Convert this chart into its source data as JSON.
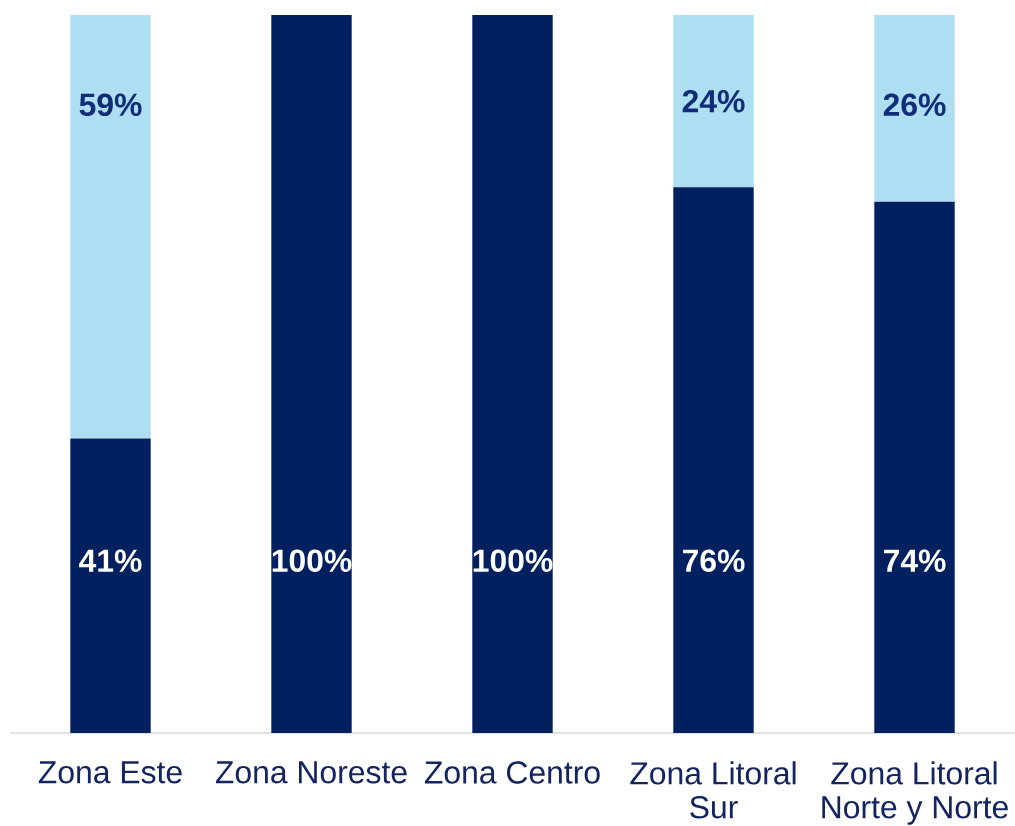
{
  "chart_data": {
    "type": "bar",
    "stacked": true,
    "categories": [
      "Zona Este",
      "Zona Noreste",
      "Zona Centro",
      "Zona Litoral Sur",
      "Zona Litoral Norte y Norte"
    ],
    "series": [
      {
        "color": "#00205f",
        "values": [
          41,
          100,
          100,
          76,
          74
        ],
        "value_labels": [
          "41%",
          "100%",
          "100%",
          "76%",
          "74%"
        ]
      },
      {
        "color": "#addef2",
        "values": [
          59,
          0,
          0,
          24,
          26
        ],
        "value_labels": [
          "59%",
          null,
          null,
          "24%",
          "26%"
        ]
      }
    ]
  }
}
